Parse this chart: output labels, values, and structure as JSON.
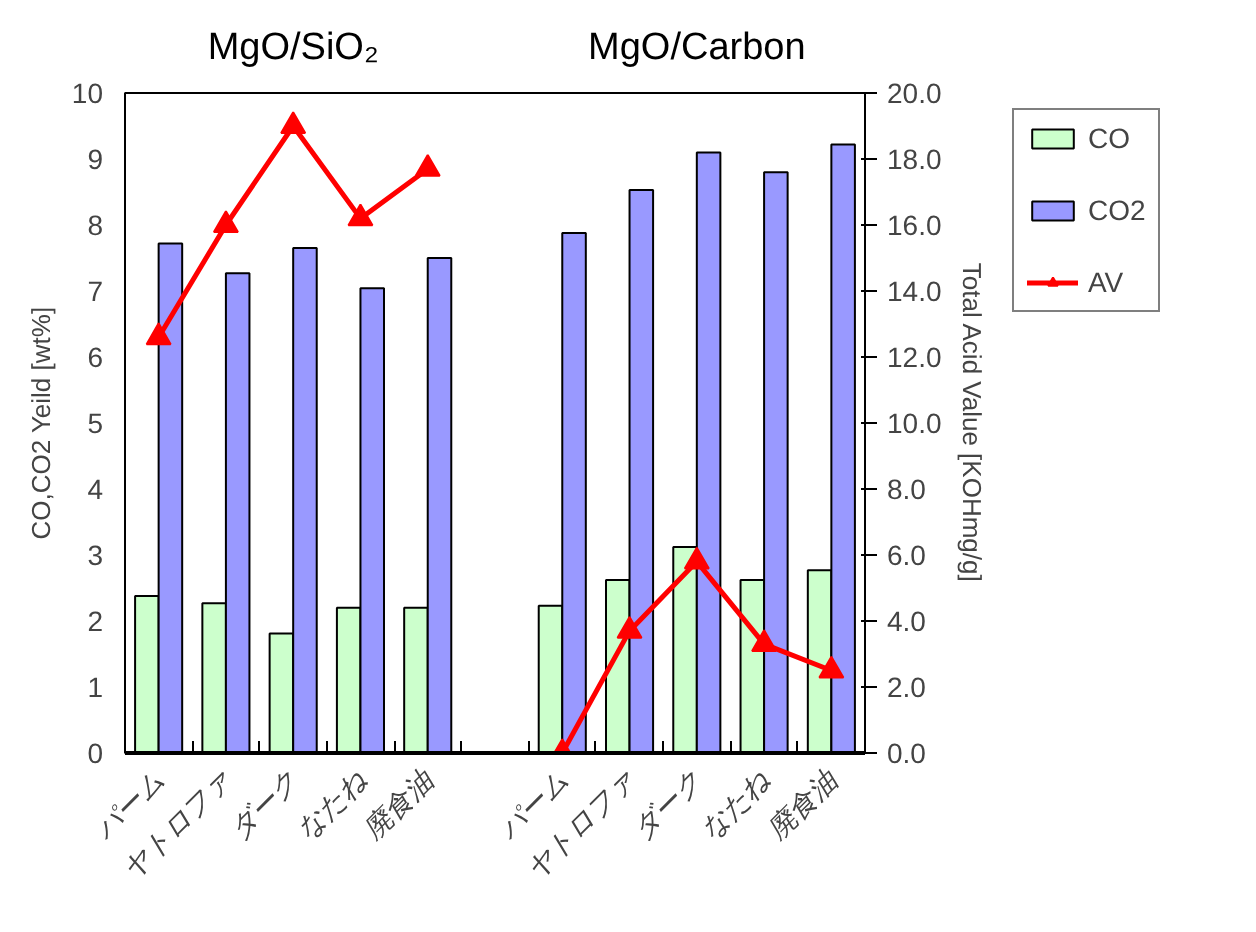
{
  "chart_data": {
    "type": "bar",
    "annotations": [
      "MgO/SiO₂",
      "MgO/Carbon"
    ],
    "ylabel": "CO,CO2 Yeild [wt%]",
    "y2label": "Total Acid Value [KOHmg/g]",
    "categories": [
      "パーム",
      "ヤトロファ",
      "ダーク",
      "なたね",
      "廃食油",
      null,
      "パーム",
      "ヤトロファ",
      "ダーク",
      "なたね",
      "廃食油"
    ],
    "series": [
      {
        "name": "CO",
        "color": "#ccffcc",
        "values": [
          2.38,
          2.27,
          1.81,
          2.2,
          2.2,
          null,
          2.23,
          2.62,
          3.12,
          2.62,
          2.77
        ]
      },
      {
        "name": "CO2",
        "color": "#9999ff",
        "values": [
          7.72,
          7.27,
          7.65,
          7.04,
          7.5,
          null,
          7.88,
          8.53,
          9.1,
          8.8,
          9.22
        ]
      },
      {
        "name": "AV",
        "type": "line",
        "axis": "y2",
        "color": "#ff0000",
        "marker": "triangle",
        "values": [
          12.6,
          16.0,
          19.0,
          16.2,
          17.7,
          null,
          0.0,
          3.7,
          5.8,
          3.3,
          2.5
        ]
      }
    ],
    "ylim": [
      0,
      10
    ],
    "yticks": [
      0,
      1,
      2,
      3,
      4,
      5,
      6,
      7,
      8,
      9,
      10
    ],
    "y2lim": [
      0,
      20
    ],
    "y2ticks": [
      {
        "value": 0,
        "label": "0.0"
      },
      {
        "value": 2,
        "label": "2.0"
      },
      {
        "value": 4,
        "label": "4.0"
      },
      {
        "value": 6,
        "label": "6.0"
      },
      {
        "value": 8,
        "label": "8.0"
      },
      {
        "value": 10,
        "label": "10.0"
      },
      {
        "value": 12,
        "label": "12.0"
      },
      {
        "value": 14,
        "label": "14.0"
      },
      {
        "value": 16,
        "label": "16.0"
      },
      {
        "value": 18,
        "label": "18.0"
      },
      {
        "value": 20,
        "label": "20.0"
      }
    ],
    "grid": false,
    "legend": "right"
  }
}
